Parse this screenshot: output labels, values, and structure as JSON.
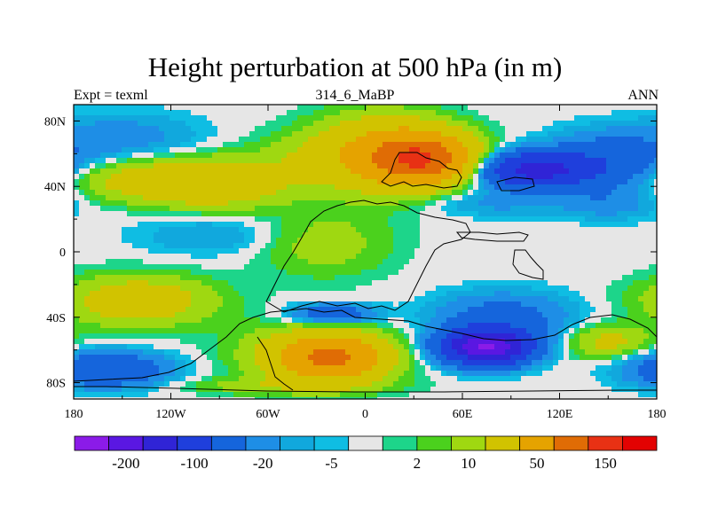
{
  "header": {
    "title": "Height perturbation at 500 hPa (in m)",
    "left": "Expt = texml",
    "center": "314_6_MaBP",
    "right": "ANN"
  },
  "chart_data": {
    "type": "heatmap",
    "title": "Height perturbation at 500 hPa (in m)",
    "xlabel": "",
    "ylabel": "",
    "x_ticks": [
      "180",
      "120W",
      "60W",
      "0",
      "60E",
      "120E",
      "180"
    ],
    "x_tick_lon": [
      -180,
      -120,
      -60,
      0,
      60,
      120,
      180
    ],
    "y_ticks": [
      "80N",
      "40N",
      "0",
      "40S",
      "80S"
    ],
    "y_tick_lat": [
      80,
      40,
      0,
      -40,
      -80
    ],
    "xlim": [
      -180,
      180
    ],
    "ylim": [
      -90,
      90
    ],
    "colorbar": {
      "labels": [
        "-200",
        "-100",
        "-20",
        "-5",
        "2",
        "10",
        "50",
        "150"
      ],
      "levels": [
        -300,
        -200,
        -150,
        -100,
        -50,
        -20,
        -10,
        -5,
        -2,
        2,
        5,
        10,
        20,
        50,
        100,
        150,
        200
      ],
      "colors": [
        "#8b1be8",
        "#5a17e2",
        "#3024d6",
        "#1f3fdc",
        "#1565dc",
        "#1e8ee6",
        "#11a8dd",
        "#0fbde3",
        "#e6e6e6",
        "#1dd58a",
        "#4bd11d",
        "#9fd811",
        "#d1c300",
        "#e5a300",
        "#e06c05",
        "#e83114",
        "#e30202"
      ]
    },
    "field_centers": [
      {
        "lon": 35,
        "lat": 57,
        "value": 130,
        "rlon": 30,
        "rlat": 14
      },
      {
        "lon": 10,
        "lat": 60,
        "value": 55,
        "rlon": 40,
        "rlat": 22
      },
      {
        "lon": -95,
        "lat": 42,
        "value": 45,
        "rlon": 45,
        "rlat": 14
      },
      {
        "lon": -150,
        "lat": 44,
        "value": 20,
        "rlon": 40,
        "rlat": 12
      },
      {
        "lon": -40,
        "lat": 58,
        "value": 10,
        "rlon": 35,
        "rlat": 15
      },
      {
        "lon": 105,
        "lat": 50,
        "value": -120,
        "rlon": 30,
        "rlat": 10
      },
      {
        "lon": 150,
        "lat": 55,
        "value": -40,
        "rlon": 35,
        "rlat": 16
      },
      {
        "lon": -150,
        "lat": 70,
        "value": -15,
        "rlon": 45,
        "rlat": 14
      },
      {
        "lon": -95,
        "lat": 10,
        "value": -10,
        "rlon": 45,
        "rlat": 12
      },
      {
        "lon": -25,
        "lat": 5,
        "value": 15,
        "rlon": 40,
        "rlat": 20
      },
      {
        "lon": 80,
        "lat": 30,
        "value": -12,
        "rlon": 40,
        "rlat": 8
      },
      {
        "lon": 150,
        "lat": 30,
        "value": -15,
        "rlon": 30,
        "rlat": 10
      },
      {
        "lon": -140,
        "lat": -30,
        "value": 35,
        "rlon": 45,
        "rlat": 15
      },
      {
        "lon": -20,
        "lat": -65,
        "value": 90,
        "rlon": 30,
        "rlat": 12
      },
      {
        "lon": -30,
        "lat": -62,
        "value": 30,
        "rlon": 45,
        "rlat": 18
      },
      {
        "lon": -20,
        "lat": -38,
        "value": -40,
        "rlon": 25,
        "rlat": 6
      },
      {
        "lon": 75,
        "lat": -58,
        "value": -200,
        "rlon": 25,
        "rlat": 10
      },
      {
        "lon": 85,
        "lat": -40,
        "value": -30,
        "rlon": 40,
        "rlat": 14
      },
      {
        "lon": 150,
        "lat": -55,
        "value": 25,
        "rlon": 25,
        "rlat": 10
      },
      {
        "lon": -160,
        "lat": -72,
        "value": -50,
        "rlon": 35,
        "rlat": 10
      },
      {
        "lon": -50,
        "lat": -82,
        "value": 15,
        "rlon": 60,
        "rlat": 5
      }
    ]
  }
}
